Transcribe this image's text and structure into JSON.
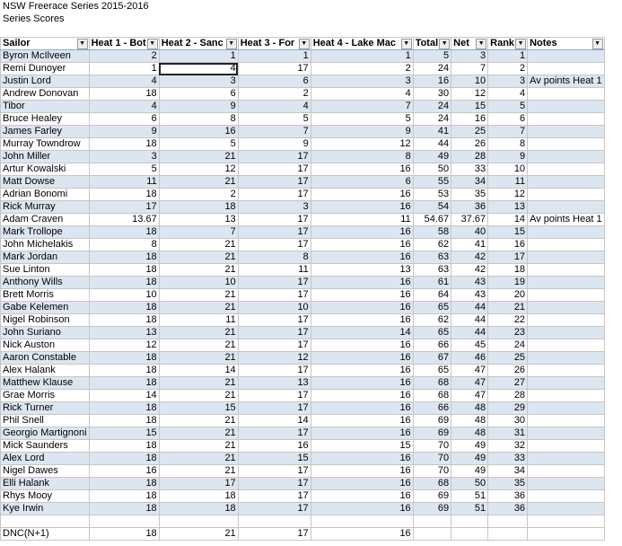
{
  "sheet": {
    "title": "NSW Freerace Series 2015-2016",
    "subtitle": "Series Scores",
    "headers": [
      "Sailor",
      "Heat 1 - Bot",
      "Heat 2 - Sanc",
      "Heat 3 - For",
      "Heat 4 - Lake Mac",
      "Total",
      "Net",
      "Rank",
      "Notes"
    ],
    "rows": [
      [
        "Byron McIlveen",
        2,
        1,
        1,
        1,
        5,
        3,
        1
      ],
      [
        "Remi Dunoyer",
        1,
        4,
        17,
        2,
        24,
        7,
        2
      ],
      [
        "Justin Lord",
        4,
        3,
        6,
        3,
        16,
        10,
        3,
        "Av points Heat 1"
      ],
      [
        "Andrew Donovan",
        18,
        6,
        2,
        4,
        30,
        12,
        4
      ],
      [
        "Tibor",
        4,
        9,
        4,
        7,
        24,
        15,
        5
      ],
      [
        "Bruce Healey",
        6,
        8,
        5,
        5,
        24,
        16,
        6
      ],
      [
        "James Farley",
        9,
        16,
        7,
        9,
        41,
        25,
        7
      ],
      [
        "Murray Towndrow",
        18,
        5,
        9,
        12,
        44,
        26,
        8
      ],
      [
        "John Miller",
        3,
        21,
        17,
        8,
        49,
        28,
        9
      ],
      [
        "Artur Kowalski",
        5,
        12,
        17,
        16,
        50,
        33,
        10
      ],
      [
        "Matt Dowse",
        11,
        21,
        17,
        6,
        55,
        34,
        11
      ],
      [
        "Adrian Bonomi",
        18,
        2,
        17,
        16,
        53,
        35,
        12
      ],
      [
        "Rick Murray",
        17,
        18,
        3,
        16,
        54,
        36,
        13
      ],
      [
        "Adam Craven",
        13.67,
        13,
        17,
        11,
        54.67,
        37.67,
        14,
        "Av points Heat 1"
      ],
      [
        "Mark Trollope",
        18,
        7,
        17,
        16,
        58,
        40,
        15
      ],
      [
        "John Michelakis",
        8,
        21,
        17,
        16,
        62,
        41,
        16
      ],
      [
        "Mark Jordan",
        18,
        21,
        8,
        16,
        63,
        42,
        17
      ],
      [
        "Sue Linton",
        18,
        21,
        11,
        13,
        63,
        42,
        18
      ],
      [
        "Anthony Wills",
        18,
        10,
        17,
        16,
        61,
        43,
        19
      ],
      [
        "Brett Morris",
        10,
        21,
        17,
        16,
        64,
        43,
        20
      ],
      [
        "Gabe Kelemen",
        18,
        21,
        10,
        16,
        65,
        44,
        21
      ],
      [
        "Nigel Robinson",
        18,
        11,
        17,
        16,
        62,
        44,
        22
      ],
      [
        "John Suriano",
        13,
        21,
        17,
        14,
        65,
        44,
        23
      ],
      [
        "Nick Auston",
        12,
        21,
        17,
        16,
        66,
        45,
        24
      ],
      [
        "Aaron Constable",
        18,
        21,
        12,
        16,
        67,
        46,
        25
      ],
      [
        "Alex Halank",
        18,
        14,
        17,
        16,
        65,
        47,
        26
      ],
      [
        "Matthew Klause",
        18,
        21,
        13,
        16,
        68,
        47,
        27
      ],
      [
        "Grae Morris",
        14,
        21,
        17,
        16,
        68,
        47,
        28
      ],
      [
        "Rick Turner",
        18,
        15,
        17,
        16,
        66,
        48,
        29
      ],
      [
        "Phil Snell",
        18,
        21,
        14,
        16,
        69,
        48,
        30
      ],
      [
        "Georgio Martignoni",
        15,
        21,
        17,
        16,
        69,
        48,
        31
      ],
      [
        "Mick Saunders",
        18,
        21,
        16,
        15,
        70,
        49,
        32
      ],
      [
        "Alex Lord",
        18,
        21,
        15,
        16,
        70,
        49,
        33
      ],
      [
        "Nigel Dawes",
        16,
        21,
        17,
        16,
        70,
        49,
        34
      ],
      [
        "Elli Halank",
        18,
        17,
        17,
        16,
        68,
        50,
        35
      ],
      [
        "Rhys Mooy",
        18,
        18,
        17,
        16,
        69,
        51,
        36
      ],
      [
        "Kye Irwin",
        18,
        18,
        17,
        16,
        69,
        51,
        36
      ]
    ],
    "footer": [
      "DNC(N+1)",
      18,
      21,
      17,
      16
    ]
  }
}
